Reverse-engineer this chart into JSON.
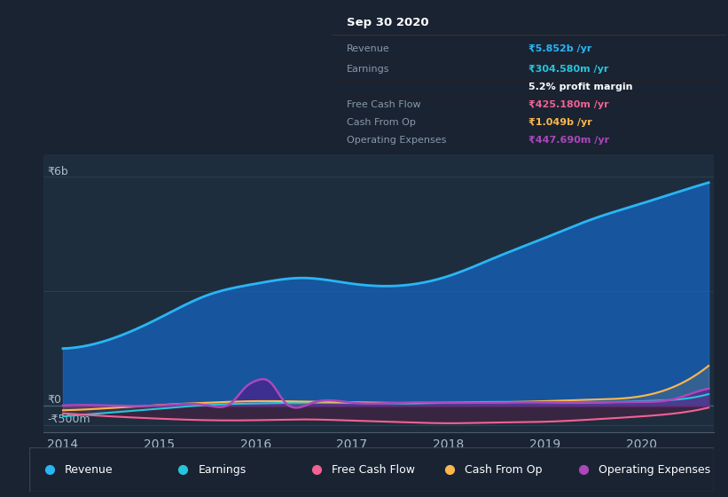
{
  "bg_color": "#1a2332",
  "plot_bg_color": "#1e2d3d",
  "grid_color": "#2a3d52",
  "ylabel_top": "₹6b",
  "ylabel_zero": "₹0",
  "ylabel_neg": "-₹500m",
  "x_ticks": [
    2014,
    2015,
    2016,
    2017,
    2018,
    2019,
    2020
  ],
  "revenue_color": "#29b6f6",
  "earnings_color": "#26c6da",
  "fcf_color": "#f06292",
  "cashfromop_color": "#ffb74d",
  "opex_color": "#ab47bc",
  "revenue_fill_color": "#1565c0",
  "info_box": {
    "date": "Sep 30 2020",
    "revenue_label": "Revenue",
    "revenue_val": "₹5.852b /yr",
    "earnings_label": "Earnings",
    "earnings_val": "₹304.580m /yr",
    "profit_margin": "5.2% profit margin",
    "fcf_label": "Free Cash Flow",
    "fcf_val": "₹425.180m /yr",
    "cop_label": "Cash From Op",
    "cop_val": "₹1.049b /yr",
    "opex_label": "Operating Expenses",
    "opex_val": "₹447.690m /yr"
  },
  "legend_items": [
    {
      "label": "Revenue",
      "color": "#29b6f6"
    },
    {
      "label": "Earnings",
      "color": "#26c6da"
    },
    {
      "label": "Free Cash Flow",
      "color": "#f06292"
    },
    {
      "label": "Cash From Op",
      "color": "#ffb74d"
    },
    {
      "label": "Operating Expenses",
      "color": "#ab47bc"
    }
  ]
}
